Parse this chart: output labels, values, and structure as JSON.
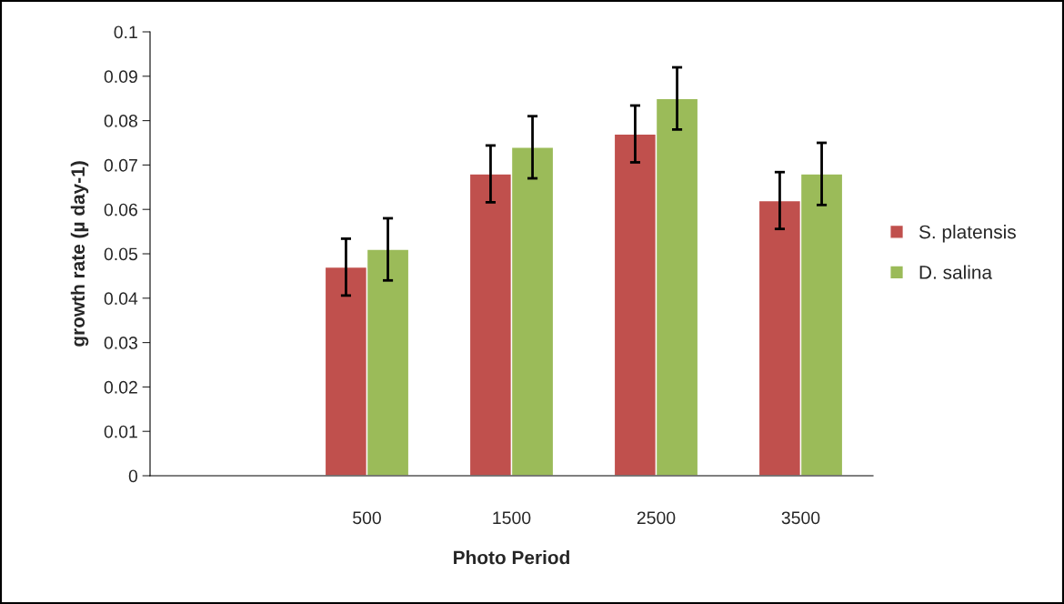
{
  "chart_data": {
    "type": "bar",
    "xlabel": "Photo Period",
    "ylabel": "growth rate (µ day-1)",
    "categories": [
      null,
      "500",
      "1500",
      "2500",
      "3500"
    ],
    "series": [
      {
        "name": "S. platensis",
        "color": "#c0504d",
        "values": [
          null,
          0.047,
          0.068,
          0.077,
          0.062
        ],
        "errors": [
          null,
          0.0064,
          0.0064,
          0.0064,
          0.0064
        ]
      },
      {
        "name": "D. salina",
        "color": "#9bbb59",
        "values": [
          null,
          0.051,
          0.074,
          0.085,
          0.068
        ],
        "errors": [
          null,
          0.007,
          0.007,
          0.007,
          0.007
        ]
      }
    ],
    "ylim": [
      0,
      0.1
    ],
    "yticks": [
      0,
      0.01,
      0.02,
      0.03,
      0.04,
      0.05,
      0.06,
      0.07,
      0.08,
      0.09,
      0.1
    ],
    "grid": false,
    "legend": "right"
  }
}
